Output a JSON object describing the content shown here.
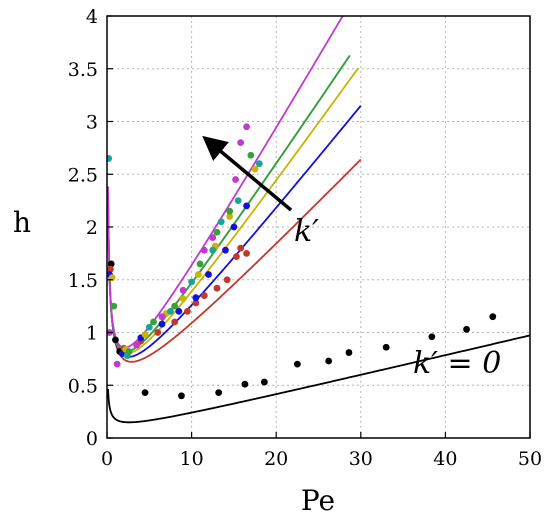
{
  "chart_data": {
    "type": "scatter",
    "xlabel": "Pe",
    "ylabel": "h",
    "xlim": [
      0,
      50
    ],
    "ylim": [
      0,
      4
    ],
    "xticks": [
      "0",
      "10",
      "20",
      "30",
      "40",
      "50"
    ],
    "yticks": [
      "0",
      "0.5",
      "1",
      "1.5",
      "2",
      "2.5",
      "3",
      "3.5",
      "4"
    ],
    "grid": true,
    "annotations": {
      "arrow_label": "k′",
      "curve_label": "k′ = 0"
    },
    "series": [
      {
        "color": "#000000",
        "fit": {
          "a": 0.16,
          "b": 0.019,
          "xmax": 50
        },
        "points": [
          [
            0.5,
            1.65
          ],
          [
            1.0,
            0.93
          ],
          [
            1.5,
            0.82
          ],
          [
            4.5,
            0.43
          ],
          [
            8.8,
            0.4
          ],
          [
            13.2,
            0.43
          ],
          [
            16.3,
            0.51
          ],
          [
            18.6,
            0.53
          ],
          [
            22.5,
            0.7
          ],
          [
            26.2,
            0.73
          ],
          [
            28.6,
            0.81
          ],
          [
            33.0,
            0.86
          ],
          [
            38.4,
            0.96
          ],
          [
            42.5,
            1.03
          ],
          [
            45.6,
            1.15
          ]
        ]
      },
      {
        "color": "#c0392b",
        "fit": {
          "a": 0.82,
          "b": 0.083,
          "xmax": 30
        },
        "points": [
          [
            0.4,
            1.6
          ],
          [
            2.0,
            0.85
          ],
          [
            4.0,
            0.92
          ],
          [
            6.0,
            1.0
          ],
          [
            8.0,
            1.1
          ],
          [
            9.5,
            1.2
          ],
          [
            10.5,
            1.28
          ],
          [
            11.5,
            1.35
          ],
          [
            13.0,
            1.42
          ],
          [
            14.2,
            1.5
          ],
          [
            15.3,
            1.72
          ],
          [
            15.8,
            1.8
          ],
          [
            16.5,
            1.75
          ]
        ]
      },
      {
        "color": "#1010e0",
        "fit": {
          "a": 0.82,
          "b": 0.1,
          "xmax": 30
        },
        "points": [
          [
            0.3,
            1.55
          ],
          [
            1.8,
            0.8
          ],
          [
            4.0,
            0.95
          ],
          [
            6.5,
            1.08
          ],
          [
            8.5,
            1.2
          ],
          [
            10.5,
            1.33
          ],
          [
            12.0,
            1.55
          ],
          [
            14.0,
            1.78
          ],
          [
            15.0,
            2.0
          ],
          [
            16.5,
            2.2
          ]
        ]
      },
      {
        "color": "#c9b400",
        "fit": {
          "a": 0.82,
          "b": 0.113,
          "xmax": 29.7
        },
        "points": [
          [
            0.6,
            1.52
          ],
          [
            2.2,
            0.84
          ],
          [
            4.5,
            0.98
          ],
          [
            7.0,
            1.18
          ],
          [
            9.0,
            1.32
          ],
          [
            10.8,
            1.55
          ],
          [
            12.8,
            1.82
          ],
          [
            14.5,
            2.1
          ],
          [
            17.5,
            2.55
          ]
        ]
      },
      {
        "color": "#1aa39a",
        "fit": {
          "a": 0.82,
          "b": 0.121,
          "xmax": 28.7
        },
        "points": [
          [
            0.2,
            2.65
          ],
          [
            2.4,
            0.78
          ],
          [
            5.0,
            1.05
          ],
          [
            7.5,
            1.2
          ],
          [
            10.0,
            1.48
          ],
          [
            12.5,
            1.78
          ],
          [
            13.5,
            2.05
          ],
          [
            15.5,
            2.25
          ],
          [
            18.0,
            2.6
          ]
        ]
      },
      {
        "color": "#3aa03a",
        "fit": {
          "a": 0.82,
          "b": 0.121,
          "xmax": 28.7
        },
        "points": [
          [
            0.8,
            1.25
          ],
          [
            2.6,
            0.82
          ],
          [
            5.5,
            1.1
          ],
          [
            8.0,
            1.25
          ],
          [
            11.0,
            1.65
          ],
          [
            13.0,
            1.95
          ],
          [
            14.5,
            2.15
          ],
          [
            17.0,
            2.68
          ]
        ]
      },
      {
        "color": "#c03ad0",
        "fit": {
          "a": 0.82,
          "b": 0.138,
          "xmax": 28.3
        },
        "points": [
          [
            0.3,
            1.0
          ],
          [
            1.2,
            0.7
          ],
          [
            3.5,
            0.88
          ],
          [
            6.5,
            1.15
          ],
          [
            9.0,
            1.4
          ],
          [
            11.5,
            1.78
          ],
          [
            12.5,
            1.9
          ],
          [
            15.2,
            2.45
          ],
          [
            15.8,
            2.8
          ],
          [
            16.5,
            2.95
          ]
        ]
      }
    ]
  }
}
